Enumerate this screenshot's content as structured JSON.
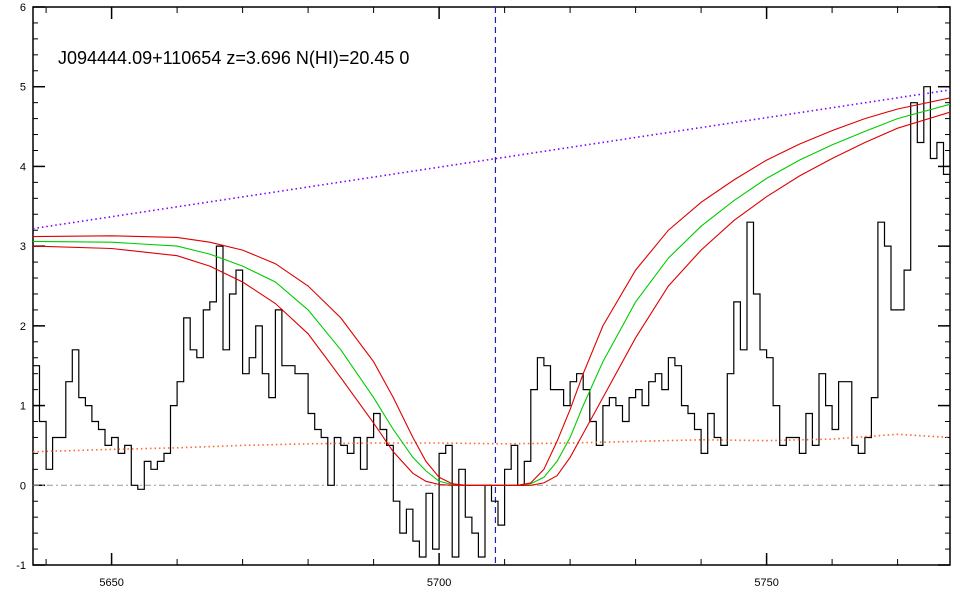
{
  "chart_data": {
    "type": "line",
    "title": "J094444.09+110654 z=3.696 N(HI)=20.45 0",
    "xlabel": "",
    "ylabel": "",
    "xlim": [
      5638,
      5778
    ],
    "ylim": [
      -1,
      6
    ],
    "x_ticks": [
      5650,
      5700,
      5750
    ],
    "y_ticks": [
      -1,
      0,
      1,
      2,
      3,
      4,
      5,
      6
    ],
    "grid": false,
    "reference_lines": {
      "zero_level": 0,
      "absorber_center": 5708.6
    },
    "series": [
      {
        "kind": "step",
        "color": "#000000",
        "x_start": 5638,
        "x_step": 1,
        "values": [
          1.5,
          0.8,
          0.2,
          0.6,
          0.6,
          1.3,
          1.7,
          1.1,
          1.0,
          0.8,
          0.7,
          0.5,
          0.6,
          0.4,
          0.5,
          0.0,
          -0.05,
          0.3,
          0.2,
          0.3,
          0.4,
          1.0,
          1.3,
          2.1,
          1.7,
          1.6,
          2.2,
          2.3,
          3.0,
          1.7,
          2.4,
          2.7,
          1.4,
          1.6,
          2.0,
          1.4,
          1.1,
          2.2,
          1.5,
          1.5,
          1.4,
          1.4,
          0.9,
          0.7,
          0.6,
          0.0,
          0.6,
          0.5,
          0.4,
          0.6,
          0.2,
          0.6,
          0.9,
          0.7,
          0.5,
          -0.2,
          -0.6,
          -0.3,
          -0.7,
          -0.9,
          -0.1,
          -0.8,
          0.4,
          0.5,
          -0.9,
          0.2,
          -0.4,
          -0.6,
          -0.9,
          0.0,
          -0.2,
          -0.5,
          0.2,
          0.5,
          0.0,
          0.3,
          1.2,
          1.6,
          1.5,
          1.2,
          1.2,
          1.0,
          1.3,
          1.4,
          1.2,
          0.8,
          0.5,
          1.0,
          1.1,
          1.0,
          0.8,
          1.1,
          1.2,
          1.0,
          1.3,
          1.4,
          1.2,
          1.6,
          1.5,
          1.0,
          0.9,
          0.7,
          0.4,
          0.9,
          0.6,
          0.5,
          1.4,
          2.3,
          1.7,
          3.3,
          2.4,
          1.7,
          1.6,
          1.0,
          0.5,
          0.6,
          0.6,
          0.4,
          0.9,
          0.5,
          1.4,
          1.0,
          0.7,
          1.3,
          1.3,
          0.5,
          0.4,
          0.6,
          1.1,
          3.3,
          3.0,
          2.2,
          2.2,
          2.7,
          4.8,
          4.3,
          5.0,
          4.1,
          4.3,
          3.9,
          3.6,
          4.2,
          4.0,
          3.6
        ]
      },
      {
        "kind": "dotted",
        "color": "#8000ff",
        "x": [
          5638,
          5778
        ],
        "values": [
          3.22,
          4.96
        ]
      },
      {
        "kind": "dotted",
        "color": "#ff6633",
        "x": [
          5638,
          5650,
          5660,
          5670,
          5680,
          5690,
          5700,
          5710,
          5720,
          5730,
          5740,
          5750,
          5760,
          5770,
          5778
        ],
        "values": [
          0.42,
          0.45,
          0.47,
          0.5,
          0.52,
          0.53,
          0.53,
          0.52,
          0.53,
          0.55,
          0.57,
          0.56,
          0.58,
          0.64,
          0.6
        ]
      },
      {
        "kind": "line",
        "color": "#00cc00",
        "x": [
          5638,
          5650,
          5660,
          5665,
          5670,
          5675,
          5680,
          5685,
          5690,
          5693,
          5696,
          5698,
          5700,
          5702,
          5704,
          5710,
          5712,
          5714,
          5716,
          5718,
          5720,
          5722,
          5725,
          5730,
          5735,
          5740,
          5745,
          5750,
          5755,
          5760,
          5765,
          5770,
          5778
        ],
        "values": [
          3.06,
          3.05,
          3.0,
          2.9,
          2.75,
          2.55,
          2.2,
          1.7,
          1.1,
          0.7,
          0.35,
          0.18,
          0.05,
          0.01,
          0.0,
          0.0,
          0.0,
          0.02,
          0.1,
          0.3,
          0.6,
          1.0,
          1.55,
          2.3,
          2.85,
          3.25,
          3.57,
          3.85,
          4.08,
          4.27,
          4.44,
          4.6,
          4.78
        ]
      },
      {
        "kind": "line",
        "color": "#dd0000",
        "x": [
          5638,
          5650,
          5660,
          5665,
          5670,
          5675,
          5680,
          5685,
          5690,
          5693,
          5696,
          5698,
          5700,
          5702,
          5704,
          5710,
          5712,
          5714,
          5716,
          5718,
          5720,
          5722,
          5725,
          5730,
          5735,
          5740,
          5745,
          5750,
          5755,
          5760,
          5765,
          5770,
          5778
        ],
        "values": [
          3.12,
          3.13,
          3.11,
          3.05,
          2.95,
          2.78,
          2.5,
          2.1,
          1.55,
          1.1,
          0.6,
          0.3,
          0.1,
          0.02,
          0.0,
          0.0,
          0.0,
          0.03,
          0.2,
          0.55,
          0.95,
          1.4,
          2.0,
          2.7,
          3.2,
          3.55,
          3.83,
          4.08,
          4.28,
          4.45,
          4.6,
          4.72,
          4.86
        ]
      },
      {
        "kind": "line",
        "color": "#dd0000",
        "x": [
          5638,
          5650,
          5660,
          5665,
          5670,
          5675,
          5680,
          5685,
          5690,
          5693,
          5696,
          5698,
          5700,
          5702,
          5704,
          5710,
          5712,
          5714,
          5716,
          5718,
          5720,
          5722,
          5725,
          5730,
          5735,
          5740,
          5745,
          5750,
          5755,
          5760,
          5765,
          5770,
          5778
        ],
        "values": [
          3.0,
          2.97,
          2.88,
          2.75,
          2.55,
          2.28,
          1.9,
          1.35,
          0.78,
          0.42,
          0.15,
          0.05,
          0.01,
          0.0,
          0.0,
          0.0,
          0.0,
          0.0,
          0.03,
          0.12,
          0.35,
          0.65,
          1.1,
          1.85,
          2.5,
          2.95,
          3.32,
          3.62,
          3.88,
          4.1,
          4.3,
          4.48,
          4.68
        ]
      }
    ]
  }
}
